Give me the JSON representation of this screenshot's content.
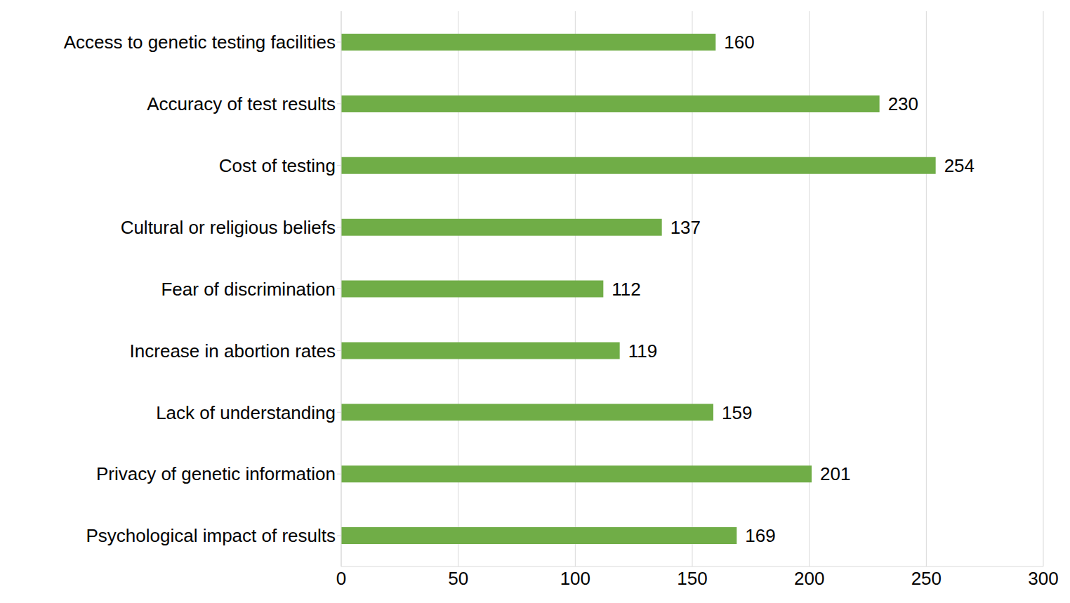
{
  "chart_data": {
    "type": "bar",
    "orientation": "horizontal",
    "categories": [
      "Access to genetic testing facilities",
      "Accuracy of test results",
      "Cost of testing",
      "Cultural or religious beliefs",
      "Fear of discrimination",
      "Increase in abortion rates",
      "Lack of understanding",
      "Privacy of genetic information",
      "Psychological impact of results"
    ],
    "values": [
      160,
      230,
      254,
      137,
      112,
      119,
      159,
      201,
      169
    ],
    "color": "#70ad47",
    "xlim": [
      0,
      300
    ],
    "xticks": [
      0,
      50,
      100,
      150,
      200,
      250,
      300
    ],
    "grid": true,
    "data_labels": true
  }
}
